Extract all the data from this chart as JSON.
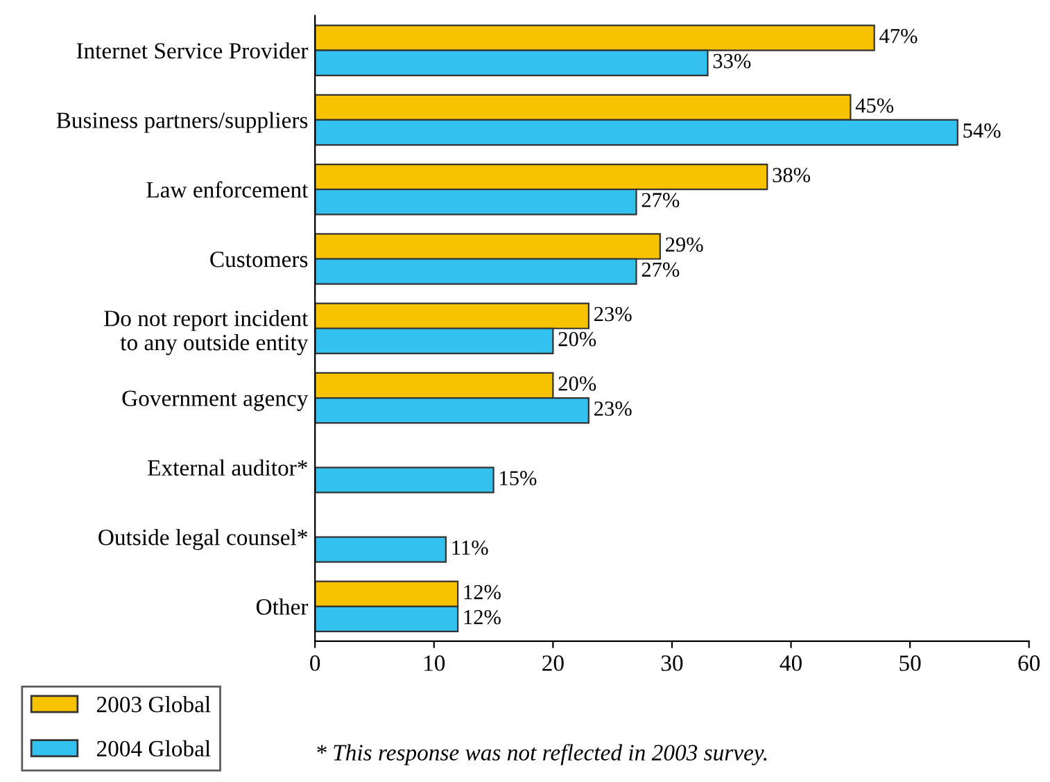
{
  "chart_data": {
    "type": "bar",
    "orientation": "horizontal",
    "categories": [
      "Internet Service Provider",
      "Business partners/suppliers",
      "Law enforcement",
      "Customers",
      "Do not report incident\nto any outside entity",
      "Government agency",
      "External auditor*",
      "Outside legal counsel*",
      "Other"
    ],
    "series": [
      {
        "name": "2003 Global",
        "color": "#f7c300",
        "values": [
          47,
          45,
          38,
          29,
          23,
          20,
          null,
          null,
          12
        ],
        "value_labels": [
          "47%",
          "45%",
          "38%",
          "29%",
          "23%",
          "20%",
          null,
          null,
          "12%"
        ]
      },
      {
        "name": "2004 Global",
        "color": "#33c1ef",
        "values": [
          33,
          54,
          27,
          27,
          20,
          23,
          15,
          11,
          12
        ],
        "value_labels": [
          "33%",
          "54%",
          "27%",
          "27%",
          "20%",
          "23%",
          "15%",
          "11%",
          "12%"
        ]
      }
    ],
    "xlim": [
      0,
      60
    ],
    "xticks": [
      0,
      10,
      20,
      30,
      40,
      50,
      60
    ],
    "legend": "bottom left",
    "annotations": [
      "* This response was not reflected in 2003 survey."
    ]
  }
}
